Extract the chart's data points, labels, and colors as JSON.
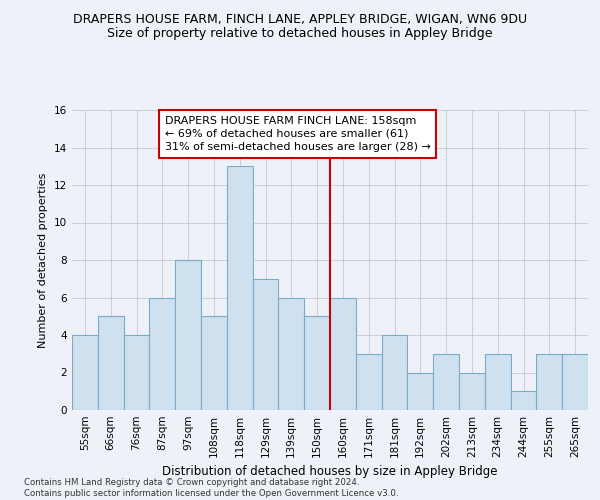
{
  "title": "DRAPERS HOUSE FARM, FINCH LANE, APPLEY BRIDGE, WIGAN, WN6 9DU",
  "subtitle": "Size of property relative to detached houses in Appley Bridge",
  "xlabel": "Distribution of detached houses by size in Appley Bridge",
  "ylabel": "Number of detached properties",
  "categories": [
    "55sqm",
    "66sqm",
    "76sqm",
    "87sqm",
    "97sqm",
    "108sqm",
    "118sqm",
    "129sqm",
    "139sqm",
    "150sqm",
    "160sqm",
    "171sqm",
    "181sqm",
    "192sqm",
    "202sqm",
    "213sqm",
    "234sqm",
    "244sqm",
    "255sqm",
    "265sqm"
  ],
  "values": [
    4,
    5,
    4,
    6,
    8,
    5,
    13,
    7,
    6,
    5,
    6,
    3,
    4,
    2,
    3,
    2,
    3,
    1,
    3,
    3
  ],
  "bar_color": "#cfe0ef",
  "bar_edge_color": "#7aaac8",
  "vline_x_index": 10,
  "vline_color": "#cc0000",
  "annotation_text": "DRAPERS HOUSE FARM FINCH LANE: 158sqm\n← 69% of detached houses are smaller (61)\n31% of semi-detached houses are larger (28) →",
  "annotation_box_color": "#ffffff",
  "annotation_box_edgecolor": "#cc0000",
  "ylim": [
    0,
    16
  ],
  "yticks": [
    0,
    2,
    4,
    6,
    8,
    10,
    12,
    14,
    16
  ],
  "grid_color": "#c8c8d0",
  "background_color": "#eef2f8",
  "footer_line1": "Contains HM Land Registry data © Crown copyright and database right 2024.",
  "footer_line2": "Contains public sector information licensed under the Open Government Licence v3.0.",
  "title_fontsize": 9,
  "subtitle_fontsize": 9,
  "xlabel_fontsize": 8.5,
  "ylabel_fontsize": 8,
  "tick_fontsize": 7.5,
  "annotation_fontsize": 8
}
